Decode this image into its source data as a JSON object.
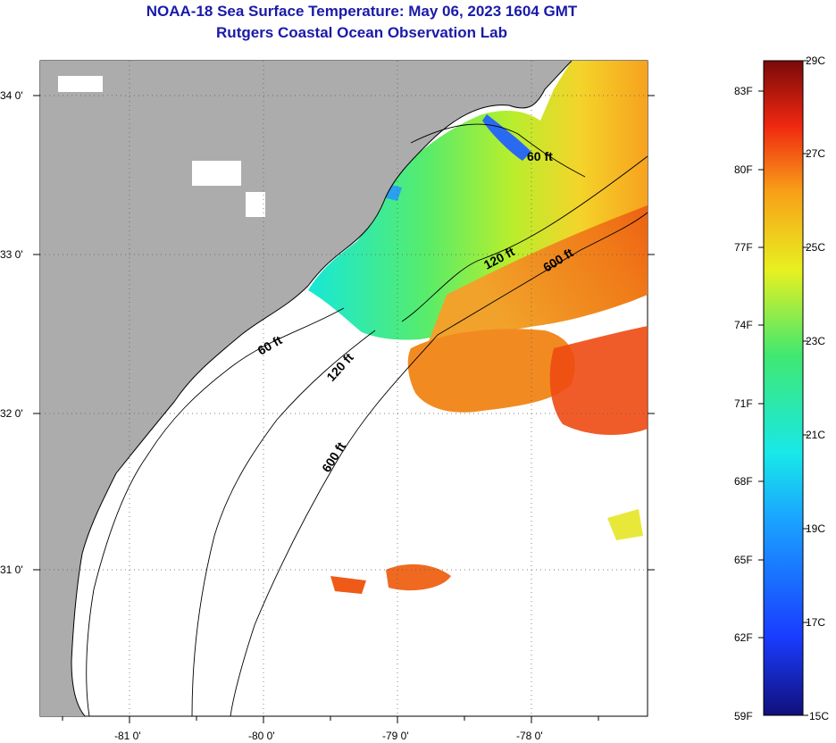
{
  "title": {
    "line1": "NOAA-18 Sea Surface Temperature:  May 06, 2023 1604 GMT",
    "line2": "Rutgers Coastal Ocean Observation Lab"
  },
  "map": {
    "lon_labels": [
      "-81 0'",
      "-80 0'",
      "-79 0'",
      "-78 0'"
    ],
    "lat_labels": [
      "34 0'",
      "33 0'",
      "32 0'",
      "31 0'"
    ],
    "contour_labels": [
      "60 ft",
      "120 ft",
      "600 ft",
      "60 ft",
      "120 ft",
      "600 ft"
    ]
  },
  "colorbar": {
    "fahrenheit": [
      "83F",
      "80F",
      "77F",
      "74F",
      "71F",
      "68F",
      "65F",
      "62F",
      "59F"
    ],
    "celsius": [
      "29C",
      "27C",
      "25C",
      "23C",
      "21C",
      "19C",
      "17C",
      "15C"
    ]
  },
  "colors": {
    "land": "#acacac",
    "no_data": "#ffffff",
    "title": "#1a1aa8"
  }
}
